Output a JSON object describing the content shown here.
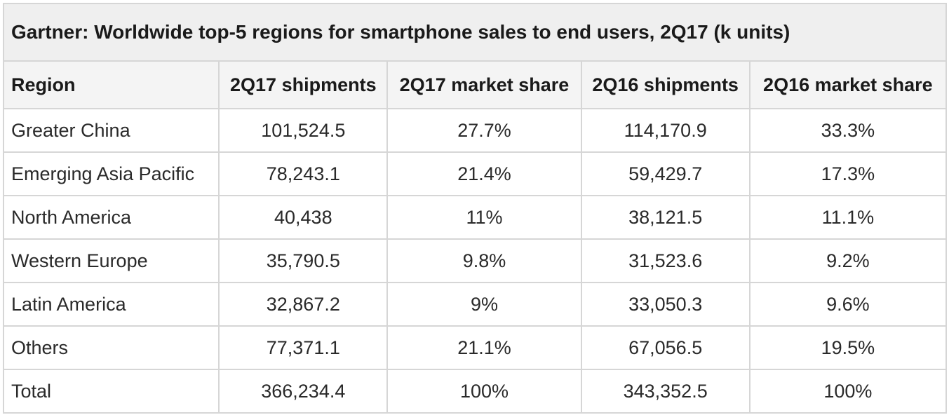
{
  "chart_data": {
    "type": "table",
    "title": "Gartner: Worldwide top-5 regions for smartphone sales to end users, 2Q17 (k units)",
    "columns": [
      "Region",
      "2Q17 shipments",
      "2Q17 market share",
      "2Q16 shipments",
      "2Q16 market share"
    ],
    "rows": [
      [
        "Greater China",
        "101,524.5",
        "27.7%",
        "114,170.9",
        "33.3%"
      ],
      [
        "Emerging Asia Pacific",
        "78,243.1",
        "21.4%",
        "59,429.7",
        "17.3%"
      ],
      [
        "North America",
        "40,438",
        "11%",
        "38,121.5",
        "11.1%"
      ],
      [
        "Western Europe",
        "35,790.5",
        "9.8%",
        "31,523.6",
        "9.2%"
      ],
      [
        "Latin America",
        "32,867.2",
        "9%",
        "33,050.3",
        "9.6%"
      ],
      [
        "Others",
        "77,371.1",
        "21.1%",
        "67,056.5",
        "19.5%"
      ],
      [
        "Total",
        "366,234.4",
        "100%",
        "343,352.5",
        "100%"
      ]
    ]
  }
}
